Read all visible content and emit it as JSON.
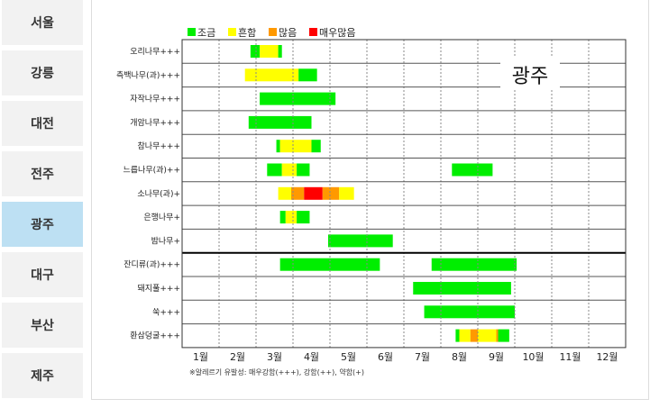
{
  "sidebar": {
    "cities": [
      {
        "label": "서울",
        "active": false
      },
      {
        "label": "강릉",
        "active": false
      },
      {
        "label": "대전",
        "active": false
      },
      {
        "label": "전주",
        "active": false
      },
      {
        "label": "광주",
        "active": true
      },
      {
        "label": "대구",
        "active": false
      },
      {
        "label": "부산",
        "active": false
      },
      {
        "label": "제주",
        "active": false
      }
    ]
  },
  "colors": {
    "low": "#00ee00",
    "normal": "#ffff00",
    "high": "#ff9900",
    "very_high": "#ff0000"
  },
  "chart_data": {
    "type": "bar",
    "title": "광주",
    "legend": [
      {
        "key": "low",
        "label": "조금"
      },
      {
        "key": "normal",
        "label": "흔함"
      },
      {
        "key": "high",
        "label": "많음"
      },
      {
        "key": "very_high",
        "label": "매우많음"
      }
    ],
    "months": [
      "1월",
      "2월",
      "3월",
      "4월",
      "5월",
      "6월",
      "7월",
      "8월",
      "9월",
      "10월",
      "11월",
      "12월"
    ],
    "note": "※알레르기 유발성: 매우강함(+++), 강함(++), 약함(+)",
    "plants": [
      {
        "name": "오리나무+++",
        "segments": [
          [
            2.85,
            3.1,
            "low"
          ],
          [
            3.1,
            3.6,
            "normal"
          ],
          [
            3.6,
            3.7,
            "low"
          ]
        ]
      },
      {
        "name": "측백나무(과)+++",
        "segments": [
          [
            2.7,
            4.15,
            "normal"
          ],
          [
            4.15,
            4.65,
            "low"
          ]
        ]
      },
      {
        "name": "자작나무+++",
        "segments": [
          [
            3.1,
            5.15,
            "low"
          ]
        ]
      },
      {
        "name": "개암나무+++",
        "segments": [
          [
            2.8,
            4.5,
            "low"
          ]
        ]
      },
      {
        "name": "참나무+++",
        "segments": [
          [
            3.55,
            3.65,
            "low"
          ],
          [
            3.65,
            4.5,
            "normal"
          ],
          [
            4.5,
            4.75,
            "low"
          ]
        ]
      },
      {
        "name": "느릅나무(과)++",
        "segments": [
          [
            3.3,
            3.7,
            "low"
          ],
          [
            3.7,
            4.1,
            "normal"
          ],
          [
            4.1,
            4.45,
            "low"
          ],
          [
            8.3,
            9.4,
            "low"
          ]
        ]
      },
      {
        "name": "소나무(과)+",
        "segments": [
          [
            3.6,
            3.95,
            "normal"
          ],
          [
            3.95,
            4.3,
            "high"
          ],
          [
            4.3,
            4.8,
            "very_high"
          ],
          [
            4.8,
            5.25,
            "high"
          ],
          [
            5.25,
            5.65,
            "normal"
          ]
        ]
      },
      {
        "name": "은행나무+",
        "segments": [
          [
            3.65,
            3.8,
            "low"
          ],
          [
            3.8,
            4.1,
            "normal"
          ],
          [
            4.1,
            4.45,
            "low"
          ]
        ]
      },
      {
        "name": "밤나무+",
        "segments": [
          [
            4.95,
            6.7,
            "low"
          ]
        ]
      },
      {
        "name": "잔디류(과)+++",
        "segments": [
          [
            3.65,
            6.35,
            "low"
          ],
          [
            7.75,
            10.05,
            "low"
          ]
        ]
      },
      {
        "name": "돼지풀+++",
        "segments": [
          [
            7.25,
            9.9,
            "low"
          ]
        ]
      },
      {
        "name": "쑥+++",
        "segments": [
          [
            7.55,
            10.0,
            "low"
          ]
        ]
      },
      {
        "name": "환삼덩굴+++",
        "segments": [
          [
            8.4,
            8.5,
            "low"
          ],
          [
            8.5,
            8.8,
            "normal"
          ],
          [
            8.8,
            9.0,
            "high"
          ],
          [
            9.0,
            9.5,
            "normal"
          ],
          [
            9.5,
            9.55,
            "high"
          ],
          [
            9.55,
            9.85,
            "low"
          ]
        ]
      }
    ]
  }
}
